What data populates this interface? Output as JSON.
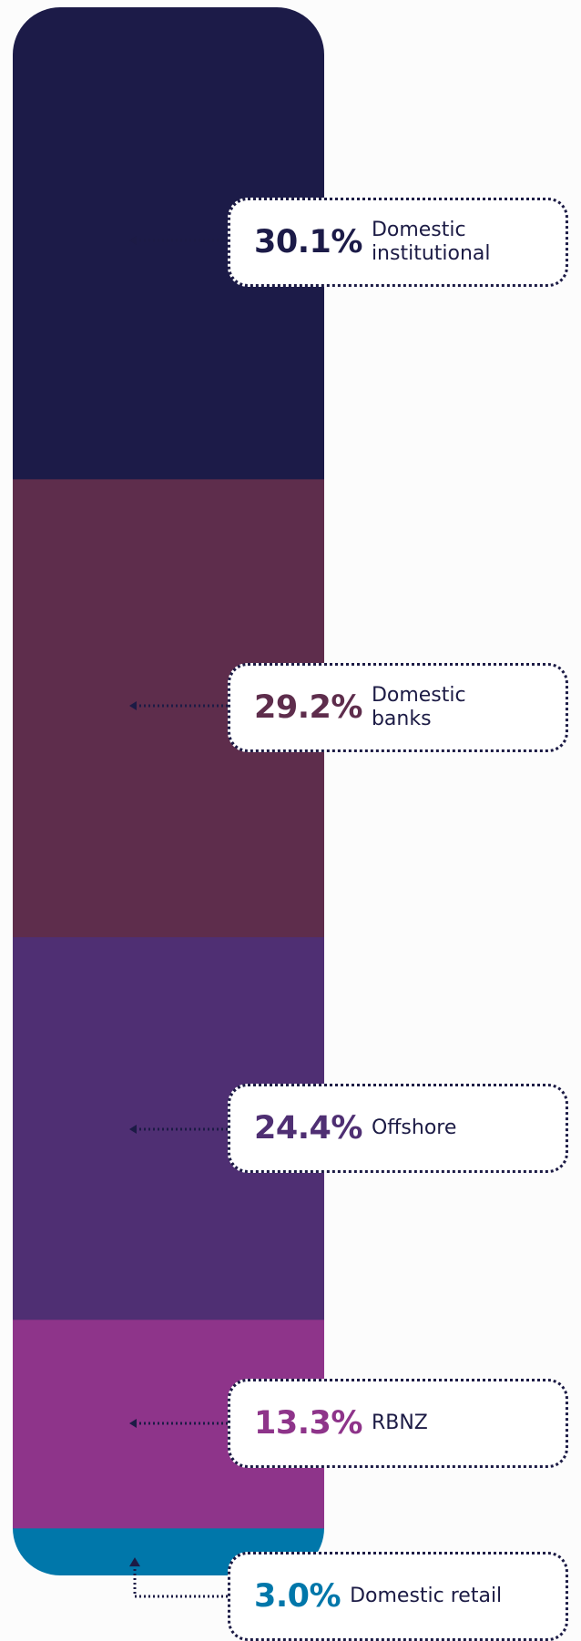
{
  "chart_data": {
    "type": "bar",
    "stacked": true,
    "orientation": "vertical",
    "unit": "%",
    "segments": [
      {
        "value": 30.1,
        "value_label": "30.1%",
        "label": "Domestic institutional",
        "color": "#1c1b48"
      },
      {
        "value": 29.2,
        "value_label": "29.2%",
        "label": "Domestic banks",
        "color": "#5e2d4c"
      },
      {
        "value": 24.4,
        "value_label": "24.4%",
        "label": "Offshore",
        "color": "#4f2f73"
      },
      {
        "value": 13.3,
        "value_label": "13.3%",
        "label": "RBNZ",
        "color": "#8e348a"
      },
      {
        "value": 3.0,
        "value_label": "3.0%",
        "label": "Domestic retail",
        "color": "#0077aa"
      }
    ]
  }
}
